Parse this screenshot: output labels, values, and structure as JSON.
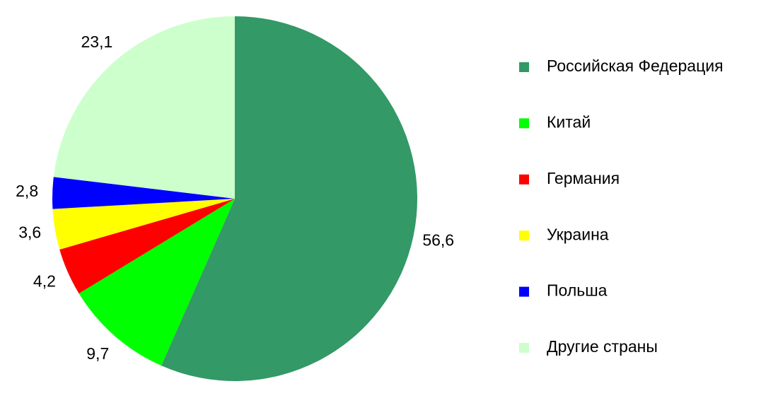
{
  "chart_data": {
    "type": "pie",
    "categories": [
      "Российская Федерация",
      "Китай",
      "Германия",
      "Украина",
      "Польша",
      "Другие страны"
    ],
    "values": [
      56.6,
      9.7,
      4.2,
      3.6,
      2.8,
      23.1
    ],
    "value_labels": [
      "56,6",
      "9,7",
      "4,2",
      "3,6",
      "2,8",
      "23,1"
    ],
    "colors": [
      "#339966",
      "#00ff00",
      "#ff0000",
      "#ffff00",
      "#0000ff",
      "#ccffcc"
    ],
    "legend": "right"
  }
}
